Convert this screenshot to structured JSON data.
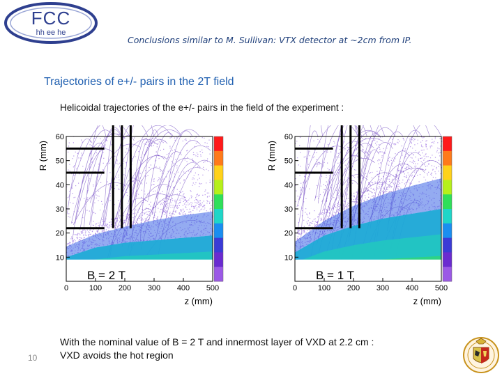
{
  "header": {
    "logo_main": "FCC",
    "logo_sub": "hh ee he",
    "subtitle": "Conclusions similar to M.  Sullivan: VTX detector at ~2cm from IP."
  },
  "section_title": "Trajectories of e+/- pairs in the 2T field",
  "figure_caption": "Helicoidal trajectories of the e+/- pairs in the field of the experiment :",
  "colors": {
    "title_blue": "#1f5fb0",
    "subtitle_blue": "#1f3f7a",
    "track_purple": "#7a3fd8",
    "detector_lines": "#000000"
  },
  "chart_data": [
    {
      "type": "heatmap",
      "title": "B = 2 T",
      "xlabel": "z (mm)",
      "ylabel": "R (mm)",
      "xlim": [
        0,
        500
      ],
      "ylim": [
        0,
        60
      ],
      "x_ticks": [
        0,
        100,
        200,
        300,
        400,
        500
      ],
      "y_ticks": [
        10,
        20,
        30,
        40,
        50,
        60
      ],
      "dense_core_edge": [
        [
          0,
          10
        ],
        [
          100,
          14
        ],
        [
          200,
          16
        ],
        [
          300,
          17
        ],
        [
          400,
          18
        ],
        [
          500,
          19
        ]
      ],
      "envelope_edge": [
        [
          0,
          18
        ],
        [
          100,
          24
        ],
        [
          200,
          28
        ],
        [
          300,
          32
        ],
        [
          400,
          35
        ],
        [
          500,
          37
        ]
      ],
      "detector_layers_r": [
        22,
        45,
        55
      ],
      "detector_layers_z_end": [
        130,
        130,
        130
      ],
      "vertical_lines_z": [
        160,
        190,
        220
      ],
      "vertical_lines_r": [
        22,
        63
      ]
    },
    {
      "type": "heatmap",
      "title": "B = 1 T",
      "xlabel": "z (mm)",
      "ylabel": "R (mm)",
      "xlim": [
        0,
        500
      ],
      "ylim": [
        0,
        60
      ],
      "x_ticks": [
        0,
        100,
        200,
        300,
        400,
        500
      ],
      "y_ticks": [
        10,
        20,
        30,
        40,
        50,
        60
      ],
      "dense_core_edge": [
        [
          0,
          12
        ],
        [
          100,
          19
        ],
        [
          200,
          23
        ],
        [
          300,
          26
        ],
        [
          400,
          28
        ],
        [
          500,
          30
        ]
      ],
      "envelope_edge": [
        [
          0,
          20
        ],
        [
          100,
          30
        ],
        [
          200,
          38
        ],
        [
          300,
          44
        ],
        [
          400,
          49
        ],
        [
          500,
          53
        ]
      ],
      "detector_layers_r": [
        22,
        45,
        55
      ],
      "detector_layers_z_end": [
        130,
        130,
        130
      ],
      "vertical_lines_z": [
        160,
        190,
        220
      ],
      "vertical_lines_r": [
        22,
        63
      ]
    }
  ],
  "conclusion": {
    "line1": "With the nominal value of B = 2 T and innermost layer of VXD at 2.2 cm :",
    "line2": "VXD avoids the hot region"
  },
  "page_number": "10"
}
